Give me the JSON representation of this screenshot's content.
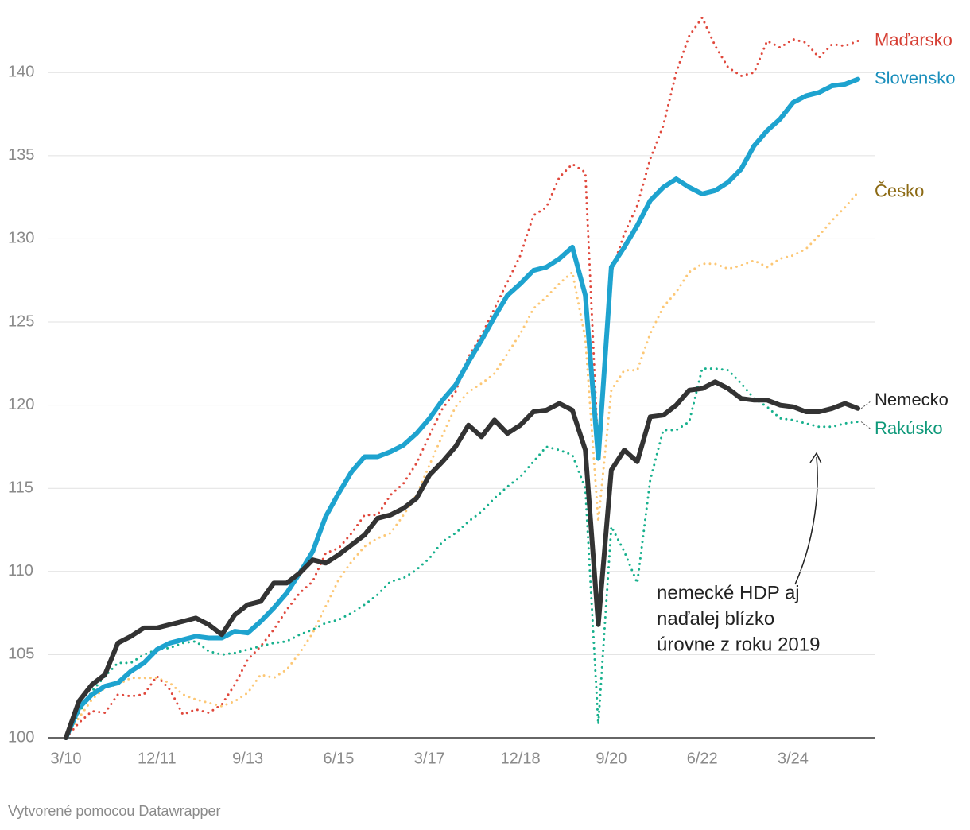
{
  "chart_data": {
    "type": "line",
    "categories": [
      "3/10",
      null,
      null,
      null,
      null,
      null,
      null,
      "12/11",
      null,
      null,
      null,
      null,
      null,
      null,
      "9/13",
      null,
      null,
      null,
      null,
      null,
      null,
      "6/15",
      null,
      null,
      null,
      null,
      null,
      null,
      "3/17",
      null,
      null,
      null,
      null,
      null,
      null,
      "12/18",
      null,
      null,
      null,
      null,
      null,
      null,
      "9/20",
      null,
      null,
      null,
      null,
      null,
      null,
      "6/22",
      null,
      null,
      null,
      null,
      null,
      null,
      "3/24",
      null,
      null,
      null,
      null,
      null
    ],
    "series": [
      {
        "name": "Maďarsko",
        "color": "#e0483c",
        "label_color": "#d63f34",
        "line_style": "dotted",
        "values": [
          100,
          100.9,
          101.6,
          101.5,
          102.6,
          102.5,
          102.6,
          103.7,
          102.9,
          101.4,
          101.7,
          101.5,
          102.0,
          103.2,
          104.7,
          105.5,
          106.5,
          107.7,
          108.7,
          109.4,
          111.1,
          111.4,
          112.3,
          113.4,
          113.4,
          114.6,
          115.3,
          116.5,
          118.2,
          119.8,
          120.8,
          122.9,
          124.2,
          125.8,
          127.4,
          129.0,
          131.4,
          131.9,
          133.7,
          134.5,
          134.0,
          117.0,
          128.0,
          130.3,
          132.0,
          134.8,
          136.8,
          140.0,
          142.2,
          143.3,
          141.6,
          140.3,
          139.8,
          140.0,
          141.9,
          141.5,
          142.0,
          141.8,
          140.9,
          141.7,
          141.6,
          141.9
        ]
      },
      {
        "name": "Slovensko",
        "color": "#1ea3cf",
        "label_color": "#1a8fbc",
        "line_style": "solid",
        "values": [
          100,
          101.8,
          102.6,
          103.1,
          103.3,
          104.0,
          104.5,
          105.3,
          105.7,
          105.9,
          106.1,
          106.0,
          106.0,
          106.4,
          106.3,
          107.0,
          107.8,
          108.7,
          109.9,
          111.2,
          113.3,
          114.7,
          116.0,
          116.9,
          116.9,
          117.2,
          117.6,
          118.3,
          119.2,
          120.3,
          121.2,
          122.6,
          123.9,
          125.3,
          126.6,
          127.3,
          128.1,
          128.3,
          128.8,
          129.5,
          126.6,
          116.8,
          128.3,
          129.5,
          130.8,
          132.3,
          133.1,
          133.6,
          133.1,
          132.7,
          132.9,
          133.4,
          134.2,
          135.6,
          136.5,
          137.2,
          138.2,
          138.6,
          138.8,
          139.2,
          139.3,
          139.6
        ]
      },
      {
        "name": "Česko",
        "color": "#fcc775",
        "label_color": "#8c6a14",
        "line_style": "dotted",
        "values": [
          100,
          101.2,
          102.3,
          103.0,
          103.2,
          103.6,
          103.6,
          103.6,
          103.3,
          102.6,
          102.3,
          102.1,
          101.9,
          102.2,
          102.7,
          103.8,
          103.6,
          104.1,
          105.1,
          106.3,
          107.9,
          109.5,
          110.6,
          111.5,
          112.0,
          112.3,
          113.4,
          114.6,
          116.4,
          118.2,
          119.9,
          120.8,
          121.3,
          121.9,
          123.1,
          124.3,
          125.8,
          126.5,
          127.3,
          128.0,
          124.0,
          113.0,
          120.9,
          122.1,
          122.1,
          124.3,
          125.9,
          126.8,
          128.0,
          128.5,
          128.5,
          128.2,
          128.4,
          128.7,
          128.3,
          128.8,
          129.0,
          129.4,
          130.2,
          131.1,
          131.9,
          132.8
        ]
      },
      {
        "name": "Nemecko",
        "color": "#333333",
        "label_color": "#222222",
        "line_style": "solid",
        "values": [
          100,
          102.2,
          103.2,
          103.8,
          105.7,
          106.1,
          106.6,
          106.6,
          106.8,
          107.0,
          107.2,
          106.8,
          106.2,
          107.4,
          108.0,
          108.2,
          109.3,
          109.3,
          109.9,
          110.7,
          110.5,
          111.0,
          111.6,
          112.2,
          113.2,
          113.4,
          113.8,
          114.4,
          115.8,
          116.6,
          117.5,
          118.8,
          118.1,
          119.1,
          118.3,
          118.8,
          119.6,
          119.7,
          120.1,
          119.7,
          117.3,
          106.8,
          116.1,
          117.3,
          116.6,
          119.3,
          119.4,
          120.0,
          120.9,
          121.0,
          121.4,
          121.0,
          120.4,
          120.3,
          120.3,
          120.0,
          119.9,
          119.6,
          119.6,
          119.8,
          120.1,
          119.8
        ]
      },
      {
        "name": "Rakúsko",
        "color": "#17b08d",
        "label_color": "#0f997a",
        "line_style": "dotted",
        "values": [
          100,
          101.5,
          102.8,
          103.7,
          104.5,
          104.5,
          105.0,
          105.3,
          105.4,
          105.7,
          105.8,
          105.2,
          105.0,
          105.1,
          105.3,
          105.5,
          105.7,
          105.8,
          106.2,
          106.5,
          106.9,
          107.1,
          107.5,
          108.0,
          108.6,
          109.4,
          109.6,
          110.1,
          110.8,
          111.8,
          112.3,
          113.0,
          113.6,
          114.4,
          115.1,
          115.7,
          116.6,
          117.5,
          117.3,
          117.0,
          115.0,
          100.8,
          112.7,
          111.2,
          109.3,
          115.5,
          118.5,
          118.5,
          119.0,
          122.2,
          122.2,
          122.1,
          121.3,
          120.4,
          119.9,
          119.2,
          119.1,
          118.9,
          118.7,
          118.7,
          118.9,
          119.0
        ]
      }
    ],
    "ylim": [
      100,
      143.5
    ],
    "yticks": [
      100,
      105,
      110,
      115,
      120,
      125,
      130,
      135,
      140
    ],
    "grid": true,
    "annotation": [
      "nemecké HDP aj",
      "naďalej blízko",
      "úrovne z roku 2019"
    ],
    "footer": "Vytvorené pomocou Datawrapper"
  }
}
